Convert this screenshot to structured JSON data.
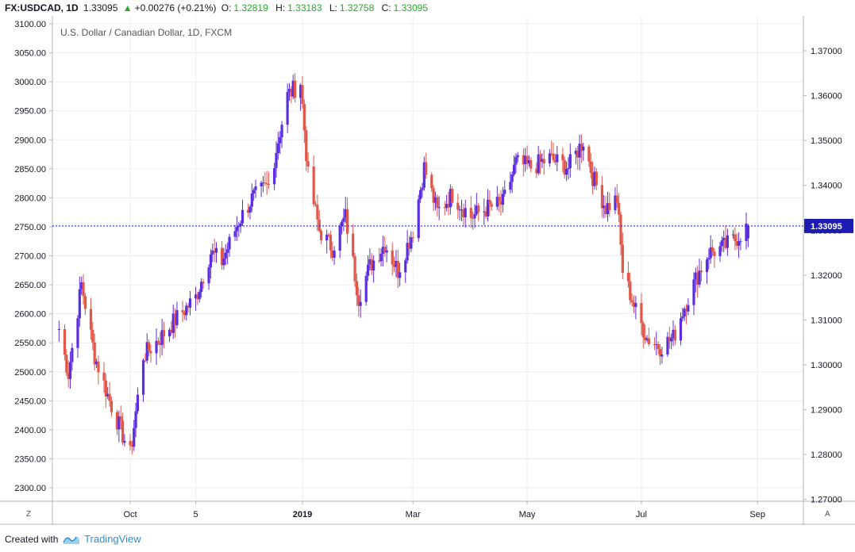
{
  "header": {
    "symbol": "FX:USDCAD, 1D",
    "last": "1.33095",
    "arrow": "▲",
    "change": "+0.00276 (+0.21%)",
    "o_label": "O:",
    "o_value": "1.32819",
    "h_label": "H:",
    "h_value": "1.33183",
    "l_label": "L:",
    "l_value": "1.32758",
    "c_label": "C:",
    "c_value": "1.33095"
  },
  "footer": {
    "created_with": "Created with",
    "brand": "TradingView"
  },
  "corner": {
    "left": "Z",
    "right": "A"
  },
  "colors": {
    "up": "#5b2de0",
    "down": "#e0574a",
    "price_line": "#1c1cb3",
    "badge": "#1c1cb3",
    "grid": "#e9edf2"
  },
  "chart_data": {
    "type": "candlestick",
    "title": "U.S. Dollar / Canadian Dollar, 1D, FXCM",
    "left_axis": {
      "ticks": [
        3100,
        3050,
        3000,
        2950,
        2900,
        2850,
        2800,
        2750,
        2700,
        2650,
        2600,
        2550,
        2500,
        2450,
        2400,
        2350,
        2300
      ],
      "labels": [
        "3100.00",
        "3050.00",
        "3000.00",
        "2950.00",
        "2900.00",
        "2850.00",
        "2800.00",
        "2750.00",
        "2700.00",
        "2650.00",
        "2600.00",
        "2550.00",
        "2500.00",
        "2450.00",
        "2400.00",
        "2350.00",
        "2300.00"
      ]
    },
    "right_axis": {
      "ticks": [
        1.37,
        1.36,
        1.35,
        1.34,
        1.33,
        1.32,
        1.31,
        1.3,
        1.29,
        1.28,
        1.27
      ],
      "labels": [
        "1.37000",
        "1.36000",
        "1.35000",
        "1.34000",
        "1.33000",
        "1.32000",
        "1.31000",
        "1.30000",
        "1.29000",
        "1.28000",
        "1.27000"
      ]
    },
    "x_labels": [
      {
        "label": "Oct",
        "date": "2018-10-01"
      },
      {
        "label": "5",
        "date": "2018-11-05"
      },
      {
        "label": "2019",
        "date": "2019-01-01",
        "bold": true
      },
      {
        "label": "Mar",
        "date": "2019-03-01"
      },
      {
        "label": "May",
        "date": "2019-05-01"
      },
      {
        "label": "Jul",
        "date": "2019-07-01"
      },
      {
        "label": "Sep",
        "date": "2019-09-01"
      }
    ],
    "current_price": {
      "value": 1.33095,
      "label": "1.33095"
    },
    "anchors": [
      {
        "date": "2018-08-24",
        "close": 1.308
      },
      {
        "date": "2018-08-29",
        "close": 1.298
      },
      {
        "date": "2018-09-05",
        "close": 1.318
      },
      {
        "date": "2018-09-12",
        "close": 1.302
      },
      {
        "date": "2018-09-20",
        "close": 1.292
      },
      {
        "date": "2018-10-01",
        "close": 1.28
      },
      {
        "date": "2018-10-08",
        "close": 1.302
      },
      {
        "date": "2018-10-17",
        "close": 1.306
      },
      {
        "date": "2018-10-25",
        "close": 1.31
      },
      {
        "date": "2018-11-05",
        "close": 1.315
      },
      {
        "date": "2018-11-13",
        "close": 1.325
      },
      {
        "date": "2018-11-19",
        "close": 1.323
      },
      {
        "date": "2018-11-28",
        "close": 1.332
      },
      {
        "date": "2018-12-05",
        "close": 1.337
      },
      {
        "date": "2018-12-14",
        "close": 1.34
      },
      {
        "date": "2018-12-24",
        "close": 1.36
      },
      {
        "date": "2018-12-31",
        "close": 1.363
      },
      {
        "date": "2019-01-04",
        "close": 1.342
      },
      {
        "date": "2019-01-10",
        "close": 1.33
      },
      {
        "date": "2019-01-17",
        "close": 1.326
      },
      {
        "date": "2019-01-24",
        "close": 1.333
      },
      {
        "date": "2019-01-31",
        "close": 1.315
      },
      {
        "date": "2019-02-06",
        "close": 1.322
      },
      {
        "date": "2019-02-14",
        "close": 1.327
      },
      {
        "date": "2019-02-21",
        "close": 1.321
      },
      {
        "date": "2019-03-01",
        "close": 1.33
      },
      {
        "date": "2019-03-07",
        "close": 1.344
      },
      {
        "date": "2019-03-14",
        "close": 1.334
      },
      {
        "date": "2019-03-22",
        "close": 1.338
      },
      {
        "date": "2019-04-01",
        "close": 1.333
      },
      {
        "date": "2019-04-10",
        "close": 1.335
      },
      {
        "date": "2019-04-18",
        "close": 1.336
      },
      {
        "date": "2019-04-25",
        "close": 1.345
      },
      {
        "date": "2019-05-03",
        "close": 1.344
      },
      {
        "date": "2019-05-13",
        "close": 1.346
      },
      {
        "date": "2019-05-23",
        "close": 1.344
      },
      {
        "date": "2019-05-31",
        "close": 1.35
      },
      {
        "date": "2019-06-05",
        "close": 1.342
      },
      {
        "date": "2019-06-12",
        "close": 1.335
      },
      {
        "date": "2019-06-18",
        "close": 1.337
      },
      {
        "date": "2019-06-21",
        "close": 1.321
      },
      {
        "date": "2019-06-28",
        "close": 1.312
      },
      {
        "date": "2019-07-04",
        "close": 1.306
      },
      {
        "date": "2019-07-11",
        "close": 1.304
      },
      {
        "date": "2019-07-18",
        "close": 1.306
      },
      {
        "date": "2019-07-23",
        "close": 1.312
      },
      {
        "date": "2019-07-31",
        "close": 1.32
      },
      {
        "date": "2019-08-06",
        "close": 1.325
      },
      {
        "date": "2019-08-13",
        "close": 1.326
      },
      {
        "date": "2019-08-20",
        "close": 1.328
      },
      {
        "date": "2019-08-27",
        "close": 1.3309
      }
    ]
  }
}
